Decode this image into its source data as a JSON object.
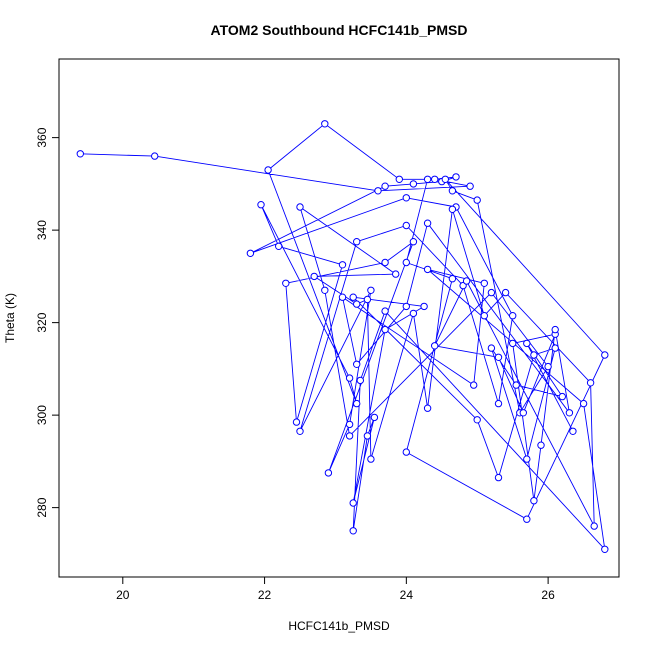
{
  "chart_data": {
    "type": "line",
    "title": "ATOM2 Southbound HCFC141b_PMSD",
    "xlabel": "HCFC141b_PMSD",
    "ylabel": "Theta (K)",
    "xlim": [
      19.1,
      27.0
    ],
    "ylim": [
      265.0,
      377.0
    ],
    "xticks": [
      20,
      22,
      24,
      26
    ],
    "yticks": [
      280,
      300,
      320,
      340,
      360
    ],
    "grid": false,
    "legend": "none",
    "colors": {
      "series": "#0000ff",
      "axis": "#000000",
      "background": "#ffffff"
    },
    "series": [
      {
        "marker": "open-circle",
        "points": [
          [
            19.4,
            356.5
          ],
          [
            20.45,
            356.0
          ],
          [
            23.6,
            348.5
          ],
          [
            24.9,
            349.5
          ],
          [
            24.4,
            351.0
          ],
          [
            24.7,
            351.5
          ],
          [
            24.5,
            350.5
          ],
          [
            24.1,
            350.0
          ],
          [
            23.7,
            349.5
          ],
          [
            21.8,
            335.0
          ],
          [
            24.0,
            347.0
          ],
          [
            24.7,
            345.0
          ],
          [
            25.5,
            321.5
          ],
          [
            25.3,
            302.5
          ],
          [
            24.8,
            328.0
          ],
          [
            24.0,
            341.0
          ],
          [
            23.3,
            337.5
          ],
          [
            22.5,
            296.5
          ],
          [
            23.5,
            327.0
          ],
          [
            23.2,
            298.0
          ],
          [
            22.9,
            287.5
          ],
          [
            24.1,
            337.5
          ],
          [
            23.7,
            333.0
          ],
          [
            22.3,
            328.5
          ],
          [
            22.45,
            298.5
          ],
          [
            23.1,
            332.5
          ],
          [
            22.2,
            336.5
          ],
          [
            21.95,
            345.5
          ],
          [
            23.2,
            308.0
          ],
          [
            23.3,
            302.5
          ],
          [
            22.05,
            353.0
          ],
          [
            22.85,
            363.0
          ],
          [
            23.9,
            351.0
          ],
          [
            24.3,
            351.0
          ],
          [
            24.0,
            333.0
          ],
          [
            24.65,
            329.5
          ],
          [
            24.0,
            292.0
          ],
          [
            25.7,
            277.5
          ],
          [
            26.8,
            313.0
          ],
          [
            24.55,
            351.0
          ],
          [
            24.65,
            348.5
          ],
          [
            25.0,
            346.5
          ],
          [
            25.6,
            300.5
          ],
          [
            26.0,
            310.5
          ],
          [
            25.2,
            326.5
          ],
          [
            23.2,
            295.5
          ],
          [
            22.85,
            327.0
          ],
          [
            22.5,
            345.0
          ],
          [
            23.85,
            330.5
          ],
          [
            22.7,
            330.0
          ],
          [
            23.3,
            324.0
          ],
          [
            23.45,
            325.0
          ],
          [
            23.5,
            290.5
          ],
          [
            24.1,
            322.0
          ],
          [
            24.3,
            301.5
          ],
          [
            24.65,
            344.5
          ],
          [
            25.1,
            321.5
          ],
          [
            25.4,
            326.5
          ],
          [
            26.6,
            307.0
          ],
          [
            26.65,
            276.0
          ],
          [
            24.85,
            329.0
          ],
          [
            24.4,
            315.0
          ],
          [
            25.3,
            312.5
          ],
          [
            25.65,
            300.5
          ],
          [
            26.1,
            317.5
          ],
          [
            25.5,
            315.5
          ],
          [
            25.8,
            281.5
          ],
          [
            25.9,
            293.5
          ],
          [
            26.1,
            318.5
          ],
          [
            26.3,
            300.5
          ],
          [
            24.3,
            341.5
          ],
          [
            24.0,
            323.5
          ],
          [
            23.3,
            311.0
          ],
          [
            23.1,
            325.5
          ],
          [
            24.95,
            306.5
          ],
          [
            25.1,
            328.5
          ],
          [
            24.3,
            331.5
          ],
          [
            26.5,
            302.5
          ],
          [
            26.8,
            271.0
          ],
          [
            23.7,
            322.5
          ],
          [
            23.35,
            307.5
          ],
          [
            23.25,
            275.0
          ],
          [
            23.45,
            295.5
          ],
          [
            23.55,
            299.5
          ],
          [
            23.25,
            281.0
          ],
          [
            23.7,
            318.5
          ],
          [
            24.25,
            323.5
          ],
          [
            23.25,
            325.5
          ],
          [
            25.0,
            299.0
          ],
          [
            25.3,
            286.5
          ],
          [
            25.8,
            313.0
          ],
          [
            26.1,
            314.5
          ],
          [
            25.7,
            290.5
          ],
          [
            25.2,
            314.5
          ],
          [
            25.55,
            306.5
          ],
          [
            26.2,
            304.0
          ],
          [
            25.7,
            315.5
          ],
          [
            26.35,
            296.5
          ]
        ]
      }
    ]
  }
}
